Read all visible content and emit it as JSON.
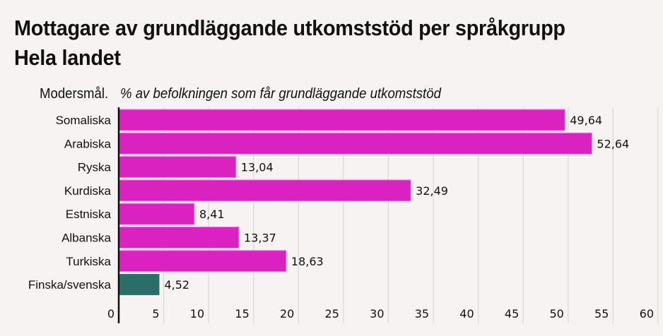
{
  "chart_data": {
    "type": "bar",
    "orientation": "horizontal",
    "title": "Mottagare av grundläggande utkomststöd per språkgrupp",
    "subtitle": "Hela landet",
    "ylabel": "Modersmål.",
    "xlabel": "% av befolkningen som får grundläggande utkomststöd",
    "categories": [
      "Somaliska",
      "Arabiska",
      "Ryska",
      "Kurdiska",
      "Estniska",
      "Albanska",
      "Turkiska",
      "Finska/svenska"
    ],
    "values": [
      49.64,
      52.64,
      13.04,
      32.49,
      8.41,
      13.37,
      18.63,
      4.52
    ],
    "value_labels": [
      "49,64",
      "52,64",
      "13,04",
      "32,49",
      "8,41",
      "13,37",
      "18,63",
      "4,52"
    ],
    "bar_colors": [
      "#d922c0",
      "#d922c0",
      "#d922c0",
      "#d922c0",
      "#d922c0",
      "#d922c0",
      "#d922c0",
      "#2a6e68"
    ],
    "xlim": [
      0,
      60
    ],
    "xticks": [
      0,
      5,
      10,
      15,
      20,
      25,
      30,
      35,
      40,
      45,
      50,
      55,
      60
    ],
    "xtick_labels": [
      "0",
      "5",
      "10",
      "15",
      "20",
      "25",
      "30",
      "35",
      "40",
      "45",
      "50",
      "55",
      "60"
    ],
    "grid": true,
    "legend": "none"
  }
}
